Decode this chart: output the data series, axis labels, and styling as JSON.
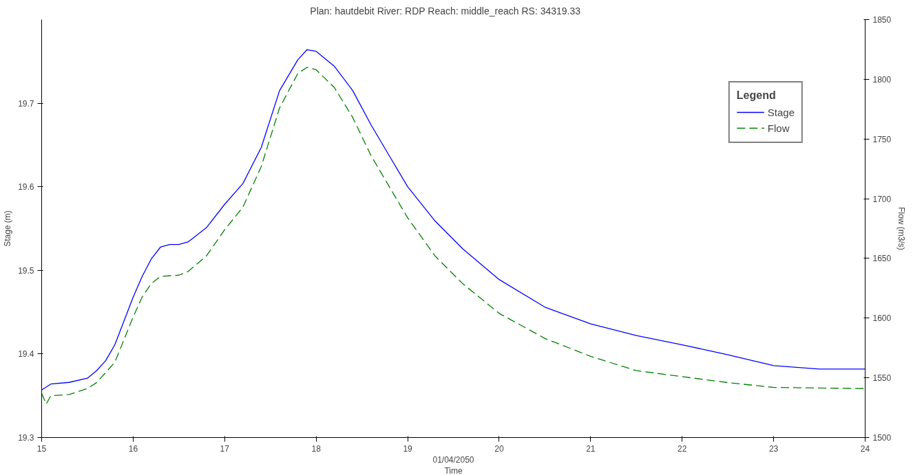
{
  "chart_data": {
    "type": "line",
    "title": "Plan: hautdebit   River: RDP   Reach: middle_reach   RS: 34319.33",
    "xlabel": "Time",
    "ylabel": "Stage (m)",
    "y2label": "Flow (m3/s)",
    "legend_title": "Legend",
    "annotations": [
      "01/04/2050"
    ],
    "xlim": [
      15,
      24
    ],
    "xticks": [
      15,
      16,
      17,
      18,
      19,
      20,
      21,
      22,
      23,
      24
    ],
    "ylim": [
      19.3,
      19.8
    ],
    "yticks": [
      19.3,
      19.4,
      19.5,
      19.6,
      19.7
    ],
    "y2lim": [
      1500,
      1850
    ],
    "y2ticks": [
      1500,
      1550,
      1600,
      1650,
      1700,
      1750,
      1800,
      1850
    ],
    "grid": false,
    "legend": "top right",
    "marker": "none",
    "series": [
      {
        "name": "Stage",
        "color": "#0000ff",
        "line_style": "solid",
        "x": [
          15,
          15.1,
          15.3,
          15.5,
          15.6,
          15.7,
          15.8,
          16.0,
          16.1,
          16.2,
          16.3,
          16.4,
          16.5,
          16.6,
          16.8,
          17.0,
          17.2,
          17.4,
          17.6,
          17.8,
          17.9,
          18.0,
          18.2,
          18.4,
          18.6,
          18.8,
          19.0,
          19.3,
          19.6,
          20.0,
          20.5,
          21.0,
          21.5,
          22.0,
          22.5,
          23.0,
          23.5,
          24.0
        ],
        "values": [
          19.357,
          19.364,
          19.366,
          19.371,
          19.38,
          19.392,
          19.411,
          19.468,
          19.493,
          19.514,
          19.528,
          19.531,
          19.531,
          19.534,
          19.551,
          19.579,
          19.604,
          19.647,
          19.715,
          19.752,
          19.764,
          19.762,
          19.744,
          19.715,
          19.674,
          19.637,
          19.6,
          19.559,
          19.526,
          19.489,
          19.456,
          19.436,
          19.422,
          19.411,
          19.399,
          19.386,
          19.382,
          19.382
        ]
      },
      {
        "name": "Flow",
        "color": "#008000",
        "line_style": "dashed",
        "axis": "y2",
        "x": [
          15,
          15.05,
          15.1,
          15.3,
          15.5,
          15.6,
          15.8,
          16.0,
          16.1,
          16.2,
          16.3,
          16.5,
          16.6,
          16.8,
          17.0,
          17.2,
          17.4,
          17.6,
          17.8,
          17.9,
          18.0,
          18.2,
          18.4,
          18.6,
          18.8,
          19.0,
          19.3,
          19.6,
          20.0,
          20.5,
          21.0,
          21.5,
          22.0,
          22.5,
          23.0,
          24.0
        ],
        "values": [
          1537,
          1528,
          1535,
          1536,
          1541,
          1546,
          1563,
          1601,
          1618,
          1629,
          1635,
          1636,
          1639,
          1652,
          1674,
          1693,
          1727,
          1776,
          1805,
          1810,
          1808,
          1793,
          1768,
          1736,
          1710,
          1684,
          1652,
          1629,
          1604,
          1583,
          1568,
          1556,
          1551,
          1546,
          1542,
          1541
        ]
      }
    ]
  }
}
